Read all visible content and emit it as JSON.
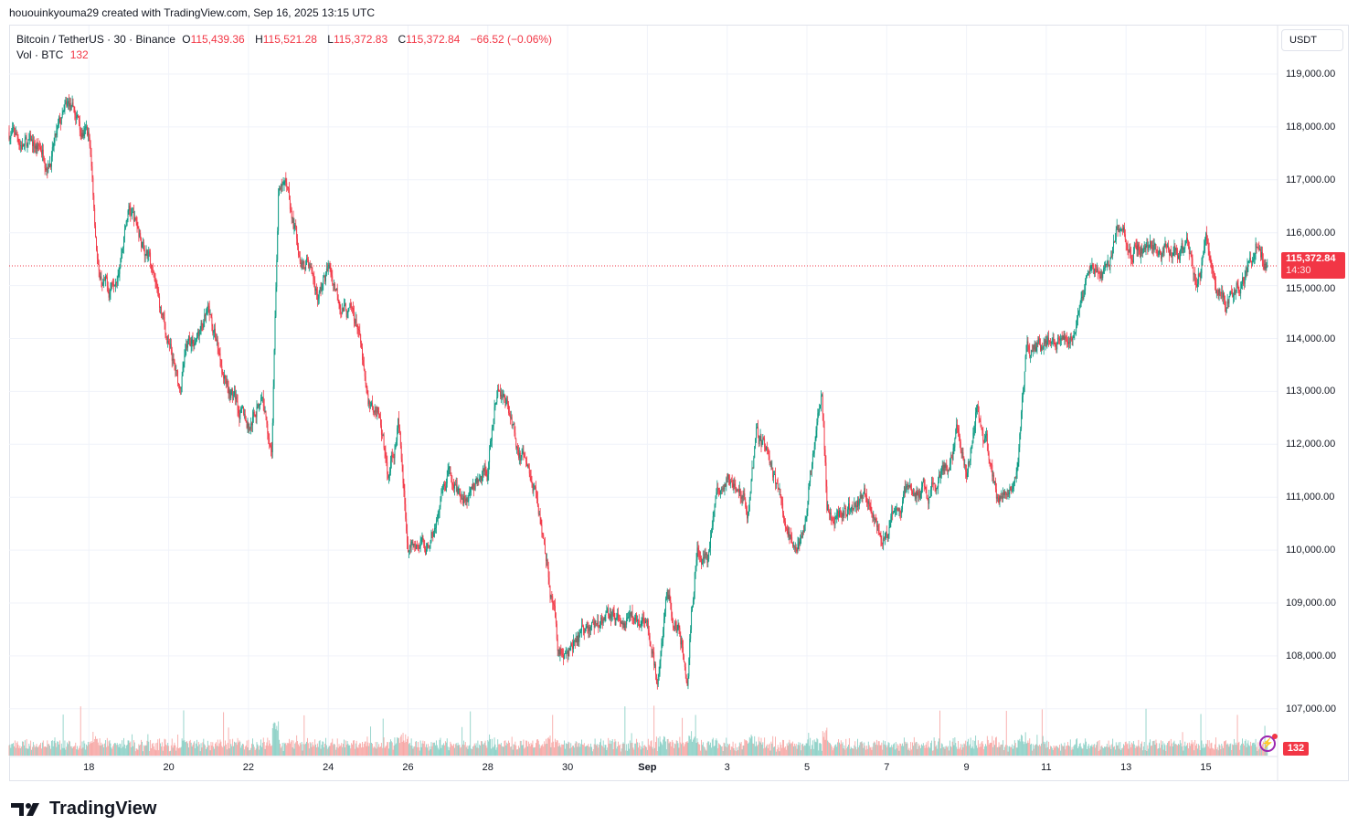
{
  "credit": "hououinkyouma29 created with TradingView.com, Sep 16, 2025 13:15 UTC",
  "legend": {
    "symbol": "Bitcoin / TetherUS · 30 · Binance",
    "o_label": "O",
    "o": "115,439.36",
    "h_label": "H",
    "h": "115,521.28",
    "l_label": "L",
    "l": "115,372.83",
    "c_label": "C",
    "c": "115,372.84",
    "change": "−66.52 (−0.06%)",
    "vol_label": "Vol · BTC",
    "vol": "132"
  },
  "currency_button": "USDT",
  "price_tag": {
    "price": "115,372.84",
    "countdown": "14:30"
  },
  "volume_tag": "132",
  "logo_text": "TradingView",
  "colors": {
    "up": "#089981",
    "down": "#f23645",
    "vol_up": "#8ed1c7",
    "vol_down": "#f7a9a7"
  },
  "chart_data": {
    "type": "candlestick",
    "interval": "30",
    "ylim": [
      106000,
      119900
    ],
    "y_ticks": [
      "119,000.00",
      "118,000.00",
      "117,000.00",
      "116,000.00",
      "115,000.00",
      "114,000.00",
      "113,000.00",
      "112,000.00",
      "111,000.00",
      "110,000.00",
      "109,000.00",
      "108,000.00",
      "107,000.00"
    ],
    "x_ticks": [
      "18",
      "20",
      "22",
      "24",
      "26",
      "28",
      "30",
      "Sep",
      "3",
      "5",
      "7",
      "9",
      "11",
      "13",
      "15"
    ],
    "last_price": 115372.84,
    "close_path": [
      [
        "2025-08-16T00:00",
        117900
      ],
      [
        "2025-08-16T12:00",
        117600
      ],
      [
        "2025-08-17T00:00",
        117500
      ],
      [
        "2025-08-17T12:00",
        118300
      ],
      [
        "2025-08-18T00:00",
        117800
      ],
      [
        "2025-08-18T06:00",
        115200
      ],
      [
        "2025-08-18T12:00",
        114900
      ],
      [
        "2025-08-19T00:00",
        116500
      ],
      [
        "2025-08-19T12:00",
        115500
      ],
      [
        "2025-08-20T00:00",
        113800
      ],
      [
        "2025-08-20T06:00",
        113000
      ],
      [
        "2025-08-20T12:00",
        113900
      ],
      [
        "2025-08-21T00:00",
        114300
      ],
      [
        "2025-08-21T12:00",
        113200
      ],
      [
        "2025-08-22T00:00",
        112300
      ],
      [
        "2025-08-22T08:00",
        113000
      ],
      [
        "2025-08-22T14:00",
        112000
      ],
      [
        "2025-08-22T18:00",
        116800
      ],
      [
        "2025-08-23T00:00",
        116800
      ],
      [
        "2025-08-23T06:00",
        115700
      ],
      [
        "2025-08-23T12:00",
        115500
      ],
      [
        "2025-08-23T18:00",
        114800
      ],
      [
        "2025-08-24T00:00",
        115300
      ],
      [
        "2025-08-24T12:00",
        114500
      ],
      [
        "2025-08-24T18:00",
        114200
      ],
      [
        "2025-08-25T00:00",
        112500
      ],
      [
        "2025-08-25T06:00",
        112800
      ],
      [
        "2025-08-25T12:00",
        111300
      ],
      [
        "2025-08-25T18:00",
        112400
      ],
      [
        "2025-08-26T00:00",
        110000
      ],
      [
        "2025-08-26T12:00",
        110100
      ],
      [
        "2025-08-27T00:00",
        111200
      ],
      [
        "2025-08-27T12:00",
        111000
      ],
      [
        "2025-08-28T00:00",
        111500
      ],
      [
        "2025-08-28T06:00",
        113000
      ],
      [
        "2025-08-28T12:00",
        112800
      ],
      [
        "2025-08-28T18:00",
        112000
      ],
      [
        "2025-08-29T00:00",
        111400
      ],
      [
        "2025-08-29T06:00",
        111000
      ],
      [
        "2025-08-29T12:00",
        110000
      ],
      [
        "2025-08-29T18:00",
        108200
      ],
      [
        "2025-08-30T00:00",
        108000
      ],
      [
        "2025-08-30T12:00",
        108500
      ],
      [
        "2025-08-31T00:00",
        108700
      ],
      [
        "2025-08-31T12:00",
        108600
      ],
      [
        "2025-09-01T00:00",
        108900
      ],
      [
        "2025-09-01T06:00",
        107500
      ],
      [
        "2025-09-01T12:00",
        109000
      ],
      [
        "2025-09-01T18:00",
        108700
      ],
      [
        "2025-09-02T00:00",
        107900
      ],
      [
        "2025-09-02T06:00",
        110300
      ],
      [
        "2025-09-02T12:00",
        109800
      ],
      [
        "2025-09-02T18:00",
        111000
      ],
      [
        "2025-09-03T00:00",
        111300
      ],
      [
        "2025-09-03T12:00",
        110800
      ],
      [
        "2025-09-03T18:00",
        112200
      ],
      [
        "2025-09-04T00:00",
        111800
      ],
      [
        "2025-09-04T12:00",
        110400
      ],
      [
        "2025-09-04T18:00",
        109800
      ],
      [
        "2025-09-05T00:00",
        110900
      ],
      [
        "2025-09-05T06:00",
        112500
      ],
      [
        "2025-09-05T09:00",
        112800
      ],
      [
        "2025-09-05T12:00",
        110700
      ],
      [
        "2025-09-05T18:00",
        110800
      ],
      [
        "2025-09-06T00:00",
        110800
      ],
      [
        "2025-09-06T12:00",
        110900
      ],
      [
        "2025-09-06T18:00",
        110200
      ],
      [
        "2025-09-07T00:00",
        110300
      ],
      [
        "2025-09-07T12:00",
        111100
      ],
      [
        "2025-09-08T00:00",
        111000
      ],
      [
        "2025-09-08T12:00",
        111500
      ],
      [
        "2025-09-08T18:00",
        112200
      ],
      [
        "2025-09-09T00:00",
        111400
      ],
      [
        "2025-09-09T06:00",
        112800
      ],
      [
        "2025-09-09T12:00",
        112000
      ],
      [
        "2025-09-09T18:00",
        111000
      ],
      [
        "2025-09-10T00:00",
        111300
      ],
      [
        "2025-09-10T06:00",
        111700
      ],
      [
        "2025-09-10T12:00",
        113700
      ],
      [
        "2025-09-10T18:00",
        113700
      ],
      [
        "2025-09-11T00:00",
        114000
      ],
      [
        "2025-09-11T12:00",
        114200
      ],
      [
        "2025-09-11T18:00",
        114200
      ],
      [
        "2025-09-12T00:00",
        115200
      ],
      [
        "2025-09-12T12:00",
        115100
      ],
      [
        "2025-09-12T18:00",
        116000
      ],
      [
        "2025-09-13T00:00",
        115800
      ],
      [
        "2025-09-13T12:00",
        115800
      ],
      [
        "2025-09-14T00:00",
        115700
      ],
      [
        "2025-09-14T12:00",
        115800
      ],
      [
        "2025-09-14T18:00",
        115200
      ],
      [
        "2025-09-15T00:00",
        115800
      ],
      [
        "2025-09-15T06:00",
        115000
      ],
      [
        "2025-09-15T12:00",
        114700
      ],
      [
        "2025-09-15T18:00",
        115000
      ],
      [
        "2025-09-16T00:00",
        115300
      ],
      [
        "2025-09-16T06:00",
        115800
      ],
      [
        "2025-09-16T13:00",
        115373
      ]
    ]
  }
}
